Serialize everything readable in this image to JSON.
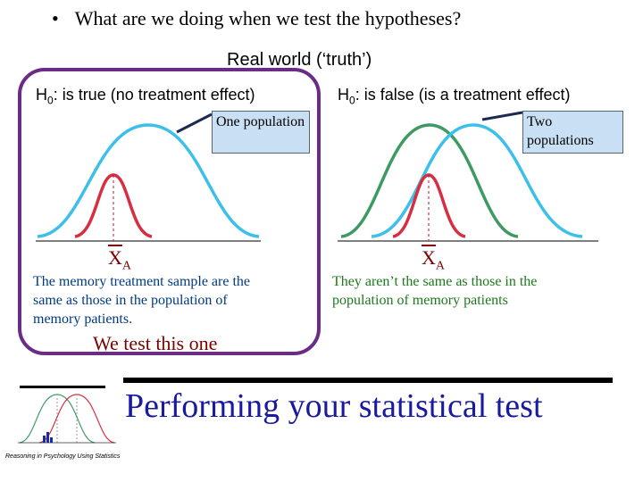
{
  "bullet_question": "What are we doing when we test the hypotheses?",
  "bullet_glyph": "•",
  "real_world_title": "Real world (‘truth’)",
  "left_panel": {
    "h0_prefix": "H",
    "h0_sub": "0",
    "h0_text": ": is true (no treatment effect)",
    "callout": "One population",
    "xbar_symbol": "X",
    "xbar_sub": "A",
    "note": "The memory treatment sample are the same as those in the population of memory patients.",
    "we_test": "We test this one"
  },
  "right_panel": {
    "h0_prefix": "H",
    "h0_sub": "0",
    "h0_text": ": is false (is a treatment effect)",
    "callout": "Two populations",
    "xbar_symbol": "X",
    "xbar_sub": "A",
    "note": "They aren’t the same as those in the population of memory patients"
  },
  "bottom_title": "Performing your statistical test",
  "footer_ref": "Reasoning in Psychology Using Statistics",
  "colors": {
    "population": "#3cc0ea",
    "sample": "#d62f42",
    "treatment_population": "#3e9a63",
    "highlight_frame": "#6a2c86",
    "callout_fill": "#c9dff4",
    "title_blue": "#1a1aa0",
    "xbar_red": "#7a0000",
    "note_blue": "#003a80",
    "note_green": "#1a7a1a"
  }
}
